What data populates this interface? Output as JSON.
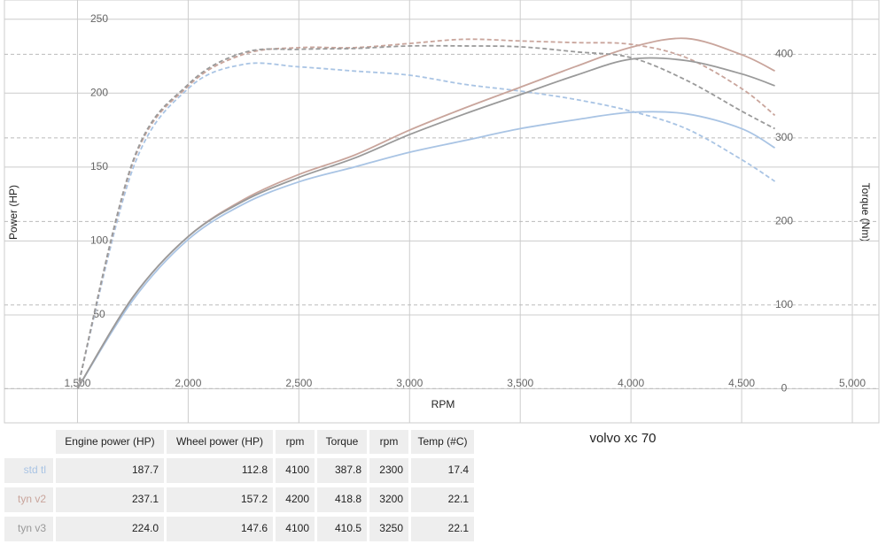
{
  "chart_data": {
    "type": "line",
    "title": "volvo xc 70",
    "x_label": "RPM",
    "y_label": "Power (HP)",
    "y2_label": "Torque (Nm)",
    "x": [
      1500,
      1750,
      2000,
      2250,
      2500,
      2750,
      3000,
      3250,
      3500,
      3750,
      4000,
      4250,
      4500,
      4650
    ],
    "series": [
      {
        "name": "std tl",
        "color": "#a9c4e4",
        "power": [
          0,
          60,
          101,
          125,
          140,
          150,
          160,
          168,
          176,
          182,
          187,
          186,
          176,
          163
        ],
        "torque": [
          0,
          263,
          359,
          388,
          385,
          380,
          375,
          364,
          356,
          346,
          332,
          311,
          274,
          248
        ]
      },
      {
        "name": "tyn v2",
        "color": "#c9a59c",
        "power": [
          0,
          62,
          103,
          128,
          145,
          158,
          175,
          190,
          204,
          218,
          231,
          237,
          226,
          215
        ],
        "torque": [
          0,
          270,
          362,
          400,
          408,
          408,
          413,
          418,
          416,
          414,
          412,
          396,
          359,
          327
        ]
      },
      {
        "name": "tyn v3",
        "color": "#9a9a9a",
        "power": [
          0,
          62,
          103,
          127,
          143,
          156,
          172,
          186,
          199,
          212,
          223,
          222,
          213,
          205
        ],
        "torque": [
          0,
          272,
          364,
          402,
          406,
          407,
          410,
          410,
          409,
          403,
          396,
          369,
          332,
          311
        ]
      }
    ],
    "xlim": [
      1170,
      5120
    ],
    "xticks": [
      {
        "value": 1500,
        "label": "1,500"
      },
      {
        "value": 2000,
        "label": "2,000"
      },
      {
        "value": 2500,
        "label": "2,500"
      },
      {
        "value": 3000,
        "label": "3,000"
      },
      {
        "value": 3500,
        "label": "3,500"
      },
      {
        "value": 4000,
        "label": "4,000"
      },
      {
        "value": 4500,
        "label": "4,500"
      },
      {
        "value": 5000,
        "label": "5,000"
      }
    ],
    "ylim": [
      -23,
      263
    ],
    "yticks": [
      0,
      50,
      100,
      150,
      200,
      250
    ],
    "y2lim": [
      -41,
      465
    ],
    "y2ticks": [
      0,
      100,
      200,
      300,
      400
    ],
    "grid": true
  },
  "table": {
    "columns": [
      "Engine power (HP)",
      "Wheel power (HP)",
      "rpm",
      "Torque",
      "rpm",
      "Temp (#C)"
    ],
    "rows": [
      [
        "187.7",
        "112.8",
        "4100",
        "387.8",
        "2300",
        "17.4"
      ],
      [
        "237.1",
        "157.2",
        "4200",
        "418.8",
        "3200",
        "22.1"
      ],
      [
        "224.0",
        "147.6",
        "4100",
        "410.5",
        "3250",
        "22.1"
      ]
    ]
  }
}
